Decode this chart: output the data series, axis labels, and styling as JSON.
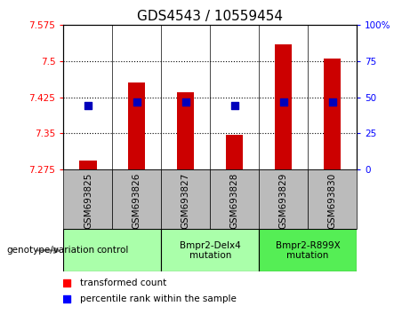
{
  "title": "GDS4543 / 10559454",
  "samples": [
    "GSM693825",
    "GSM693826",
    "GSM693827",
    "GSM693828",
    "GSM693829",
    "GSM693830"
  ],
  "red_values": [
    7.293,
    7.455,
    7.435,
    7.348,
    7.535,
    7.505
  ],
  "blue_values": [
    7.408,
    7.415,
    7.415,
    7.408,
    7.415,
    7.415
  ],
  "ylim_left": [
    7.275,
    7.575
  ],
  "ylim_right": [
    0,
    100
  ],
  "yticks_left": [
    7.275,
    7.35,
    7.425,
    7.5,
    7.575
  ],
  "yticks_right": [
    0,
    25,
    50,
    75,
    100
  ],
  "ytick_labels_left": [
    "7.275",
    "7.35",
    "7.425",
    "7.5",
    "7.575"
  ],
  "ytick_labels_right": [
    "0",
    "25",
    "50",
    "75",
    "100%"
  ],
  "hlines": [
    7.35,
    7.425,
    7.5
  ],
  "groups": [
    {
      "label": "control",
      "indices": [
        0,
        1
      ],
      "color": "#aaffaa"
    },
    {
      "label": "Bmpr2-Delx4\nmutation",
      "indices": [
        2,
        3
      ],
      "color": "#aaffaa"
    },
    {
      "label": "Bmpr2-R899X\nmutation",
      "indices": [
        4,
        5
      ],
      "color": "#55ee55"
    }
  ],
  "bar_width": 0.35,
  "bar_bottom": 7.275,
  "bar_color": "#cc0000",
  "dot_color": "#0000bb",
  "dot_size": 28,
  "legend_red_label": "transformed count",
  "legend_blue_label": "percentile rank within the sample",
  "group_label": "genotype/variation",
  "tick_bg_color": "#bbbbbb",
  "plot_bg_color": "#ffffff",
  "title_fontsize": 11,
  "tick_fontsize": 7.5,
  "label_fontsize": 7.5
}
